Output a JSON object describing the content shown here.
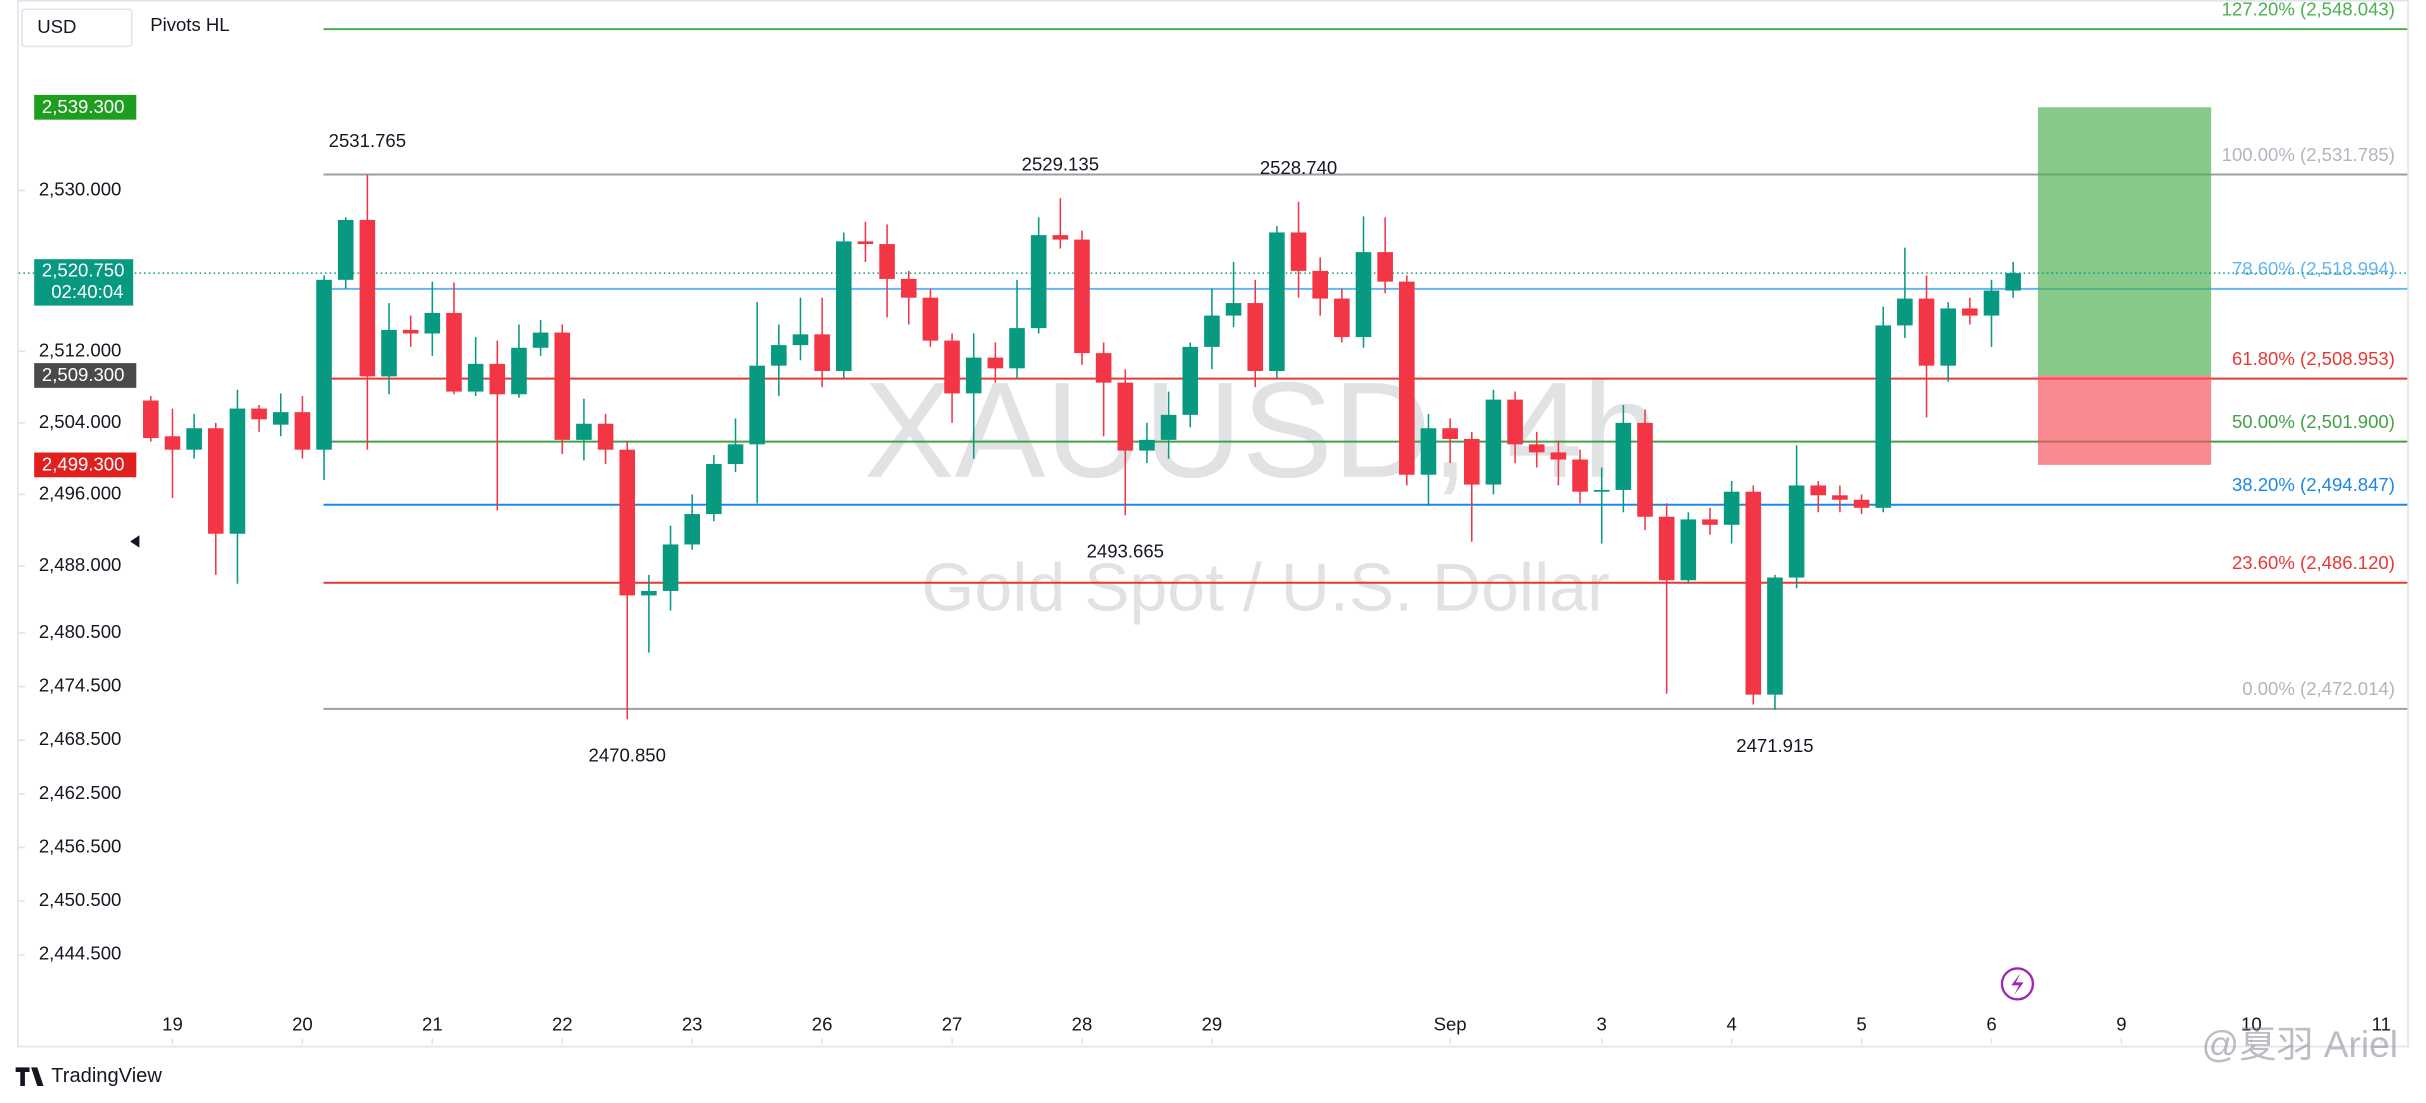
{
  "chart_data": {
    "type": "candlestick",
    "symbol_watermark": "XAUUSD, 4h",
    "description_watermark": "Gold Spot / U.S. Dollar",
    "currency": "USD",
    "indicator": "Pivots HL",
    "brand": "TradingView",
    "author_watermark": "@夏羽 Ariel",
    "up_color": "#089981",
    "down_color": "#f23645",
    "open": [
      2506.5,
      2502.5,
      2501,
      2503.4,
      2491.6,
      2505.6,
      2503.8,
      2505.2,
      2501,
      2520,
      2526.7,
      2509.2,
      2514.4,
      2514,
      2516.3,
      2507.5,
      2510.6,
      2507.2,
      2512.4,
      2514.1,
      2502.1,
      2503.9,
      2501,
      2484.7,
      2485.2,
      2490.4,
      2493.8,
      2499.4,
      2501.6,
      2510.4,
      2512.7,
      2513.9,
      2509.8,
      2524.3,
      2524,
      2520.1,
      2518,
      2513.2,
      2507.3,
      2511.3,
      2510.1,
      2514.6,
      2525,
      2524.5,
      2511.8,
      2508.5,
      2500.9,
      2502.1,
      2504.9,
      2512.5,
      2516,
      2517.4,
      2509.8,
      2525.3,
      2521,
      2517.9,
      2513.6,
      2523.1,
      2519.8,
      2498.2,
      2503.4,
      2502.2,
      2497.1,
      2506.6,
      2501.6,
      2500.7,
      2499.9,
      2496.3,
      2496.5,
      2504,
      2493.5,
      2486.4,
      2493.2,
      2492.6,
      2496.3,
      2473.6,
      2486.7,
      2497,
      2495.9,
      2495.4,
      2494.5,
      2514.9,
      2517.9,
      2510.4,
      2516.8,
      2516,
      2518.8
    ],
    "high": [
      2507,
      2505.6,
      2505,
      2504,
      2507.7,
      2506,
      2507.3,
      2507,
      2520.5,
      2527,
      2531.765,
      2517.4,
      2516,
      2519.8,
      2519.7,
      2513.6,
      2513.2,
      2515,
      2515.5,
      2515,
      2506.7,
      2505,
      2502,
      2487,
      2492.5,
      2496,
      2500.4,
      2504.5,
      2517.5,
      2515,
      2518,
      2518,
      2525.3,
      2526.5,
      2526.2,
      2521,
      2519,
      2514,
      2514,
      2513,
      2520,
      2527,
      2529.135,
      2525.5,
      2513,
      2510,
      2504,
      2507.5,
      2513,
      2519,
      2522,
      2520,
      2526,
      2528.74,
      2522.5,
      2519,
      2527.1,
      2527,
      2520.5,
      2505,
      2504.5,
      2503,
      2507.7,
      2507.5,
      2503,
      2502,
      2501,
      2499,
      2506,
      2505.5,
      2495,
      2494,
      2494.5,
      2497.5,
      2497,
      2487,
      2501.5,
      2497.5,
      2497,
      2496,
      2517,
      2523.6,
      2520.5,
      2517.5,
      2518,
      2520,
      2522
    ],
    "low": [
      2501.9,
      2495.6,
      2500,
      2487,
      2486,
      2503,
      2502.5,
      2500,
      2497.6,
      2519,
      2501,
      2507.2,
      2512.5,
      2511.5,
      2507.2,
      2507,
      2494.2,
      2506.8,
      2511.5,
      2500.5,
      2499.8,
      2499.4,
      2470.85,
      2478.3,
      2483,
      2489.8,
      2493,
      2498.5,
      2495,
      2507,
      2511,
      2508,
      2509,
      2522,
      2515.8,
      2515,
      2512.5,
      2504,
      2500,
      2508.5,
      2509,
      2514,
      2523.5,
      2510.5,
      2502.5,
      2493.665,
      2499.5,
      2500,
      2503.5,
      2510,
      2514.7,
      2508,
      2509,
      2518,
      2516,
      2513,
      2512.4,
      2518.5,
      2497,
      2494.7,
      2499.5,
      2490.7,
      2496,
      2499.5,
      2499,
      2497,
      2495,
      2490.5,
      2494,
      2492,
      2473.7,
      2486,
      2491.5,
      2490.5,
      2472.5,
      2471.915,
      2485.5,
      2494,
      2494,
      2493.8,
      2494,
      2513.5,
      2504.6,
      2508.6,
      2515,
      2512.5,
      2518
    ],
    "close": [
      2502.3,
      2501,
      2503.4,
      2491.6,
      2505.6,
      2504.4,
      2505.2,
      2501,
      2520,
      2526.7,
      2509.2,
      2514.4,
      2514,
      2516.3,
      2507.5,
      2510.6,
      2507.2,
      2512.4,
      2514.1,
      2502.1,
      2503.9,
      2501,
      2484.7,
      2485.2,
      2490.4,
      2493.8,
      2499.4,
      2501.6,
      2510.4,
      2512.7,
      2513.9,
      2509.8,
      2524.3,
      2524,
      2520.1,
      2518,
      2513.2,
      2507.3,
      2511.3,
      2510.1,
      2514.6,
      2525,
      2524.5,
      2511.8,
      2508.5,
      2500.9,
      2502.1,
      2504.9,
      2512.5,
      2516,
      2517.4,
      2509.8,
      2525.3,
      2521,
      2517.9,
      2513.6,
      2523.1,
      2519.8,
      2498.2,
      2503.4,
      2502.2,
      2497.1,
      2506.6,
      2501.6,
      2500.7,
      2499.9,
      2496.3,
      2496.5,
      2504,
      2493.5,
      2486.4,
      2493.2,
      2492.6,
      2496.3,
      2473.6,
      2486.7,
      2497,
      2495.9,
      2495.4,
      2494.5,
      2514.9,
      2517.9,
      2510.4,
      2516.8,
      2516,
      2518.8,
      2520.75
    ],
    "ylim": [
      2434.5,
      2551.3
    ],
    "yticks": [
      {
        "value": 2530,
        "label": "2,530.000"
      },
      {
        "value": 2512,
        "label": "2,512.000"
      },
      {
        "value": 2504,
        "label": "2,504.000"
      },
      {
        "value": 2496,
        "label": "2,496.000"
      },
      {
        "value": 2488,
        "label": "2,488.000"
      },
      {
        "value": 2480.5,
        "label": "2,480.500"
      },
      {
        "value": 2474.5,
        "label": "2,474.500"
      },
      {
        "value": 2468.5,
        "label": "2,468.500"
      },
      {
        "value": 2462.5,
        "label": "2,462.500"
      },
      {
        "value": 2456.5,
        "label": "2,456.500"
      },
      {
        "value": 2450.5,
        "label": "2,450.500"
      },
      {
        "value": 2444.5,
        "label": "2,444.500"
      }
    ],
    "xlim": [
      -6.1,
      104.2
    ],
    "xticks": [
      {
        "value": 1,
        "label": "19"
      },
      {
        "value": 7,
        "label": "20"
      },
      {
        "value": 13,
        "label": "21"
      },
      {
        "value": 19,
        "label": "22"
      },
      {
        "value": 25,
        "label": "23"
      },
      {
        "value": 31,
        "label": "26"
      },
      {
        "value": 37,
        "label": "27"
      },
      {
        "value": 43,
        "label": "28"
      },
      {
        "value": 49,
        "label": "29"
      },
      {
        "value": 60,
        "label": "Sep"
      },
      {
        "value": 67,
        "label": "3"
      },
      {
        "value": 73,
        "label": "4"
      },
      {
        "value": 79,
        "label": "5"
      },
      {
        "value": 85,
        "label": "6"
      },
      {
        "value": 91,
        "label": "9"
      },
      {
        "value": 97,
        "label": "10"
      },
      {
        "value": 103,
        "label": "11"
      }
    ],
    "fib_levels": [
      {
        "value": 2548.043,
        "label": "127.20% (2,548.043)",
        "color": "#4caf50",
        "text_color": "#4caf50"
      },
      {
        "value": 2531.785,
        "label": "100.00% (2,531.785)",
        "color": "#9e9e9e",
        "text_color": "#b2b5be"
      },
      {
        "value": 2518.994,
        "label": "78.60% (2,518.994)",
        "color": "#64b5f6",
        "text_color": "#64b5f6"
      },
      {
        "value": 2508.953,
        "label": "61.80% (2,508.953)",
        "color": "#e53935",
        "text_color": "#e53935"
      },
      {
        "value": 2501.9,
        "label": "50.00% (2,501.900)",
        "color": "#43a047",
        "text_color": "#43a047"
      },
      {
        "value": 2494.847,
        "label": "38.20% (2,494.847)",
        "color": "#1e88e5",
        "text_color": "#1e88e5"
      },
      {
        "value": 2486.12,
        "label": "23.60% (2,486.120)",
        "color": "#e53935",
        "text_color": "#e53935"
      },
      {
        "value": 2472.014,
        "label": "0.00% (2,472.014)",
        "color": "#9e9e9e",
        "text_color": "#b2b5be"
      }
    ],
    "pivots": [
      {
        "value": 2531.765,
        "label": "2531.765",
        "kind": "high"
      },
      {
        "value": 2529.135,
        "label": "2529.135",
        "kind": "high"
      },
      {
        "value": 2528.74,
        "label": "2528.740",
        "kind": "high"
      },
      {
        "value": 2493.665,
        "label": "2493.665",
        "kind": "low"
      },
      {
        "value": 2470.85,
        "label": "2470.850",
        "kind": "low"
      },
      {
        "value": 2471.915,
        "label": "2471.915",
        "kind": "low"
      }
    ],
    "position": {
      "target": 2539.3,
      "entry": 2509.3,
      "stop": 2499.3
    },
    "price_markers": [
      {
        "value": 2539.3,
        "label": "2,539.300",
        "color": "#1e9e1e"
      },
      {
        "value": 2509.3,
        "label": "2,509.300",
        "color": "#4a4a4a"
      },
      {
        "value": 2499.3,
        "label": "2,499.300",
        "color": "#e01f1f"
      }
    ],
    "last_price": {
      "value": 2520.75,
      "label": "2,520.750",
      "countdown": "02:40:04",
      "color": "#089981"
    }
  }
}
